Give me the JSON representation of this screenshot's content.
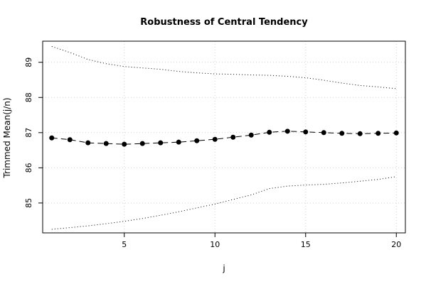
{
  "chart_data": {
    "type": "line",
    "title": "Robustness of Central Tendency",
    "xlabel": "j",
    "ylabel": "Trimmed Mean(j/n)",
    "xlim": [
      0.5,
      20.5
    ],
    "ylim": [
      84.15,
      89.6
    ],
    "x_ticks": [
      5,
      10,
      15,
      20
    ],
    "y_ticks": [
      85,
      86,
      87,
      88,
      89
    ],
    "grid": true,
    "legend": "none",
    "x": [
      1,
      2,
      3,
      4,
      5,
      6,
      7,
      8,
      9,
      10,
      11,
      12,
      13,
      14,
      15,
      16,
      17,
      18,
      19,
      20
    ],
    "series": [
      {
        "role": "upper",
        "style": "dotted",
        "values": [
          89.45,
          89.28,
          89.08,
          88.96,
          88.88,
          88.84,
          88.8,
          88.74,
          88.7,
          88.67,
          88.66,
          88.64,
          88.63,
          88.6,
          88.56,
          88.49,
          88.41,
          88.34,
          88.3,
          88.25
        ]
      },
      {
        "role": "center",
        "style": "dashed-with-points",
        "values": [
          86.85,
          86.8,
          86.71,
          86.69,
          86.67,
          86.69,
          86.71,
          86.73,
          86.77,
          86.81,
          86.87,
          86.93,
          87.01,
          87.04,
          87.02,
          87.0,
          86.98,
          86.97,
          86.98,
          86.99
        ]
      },
      {
        "role": "lower",
        "style": "dotted",
        "values": [
          84.25,
          84.3,
          84.35,
          84.41,
          84.48,
          84.56,
          84.65,
          84.75,
          84.86,
          84.97,
          85.1,
          85.23,
          85.41,
          85.48,
          85.51,
          85.53,
          85.57,
          85.62,
          85.67,
          85.75
        ]
      }
    ],
    "colors": {
      "lines": "#000000",
      "grid": "#d0d0d0",
      "box": "#000000"
    }
  }
}
